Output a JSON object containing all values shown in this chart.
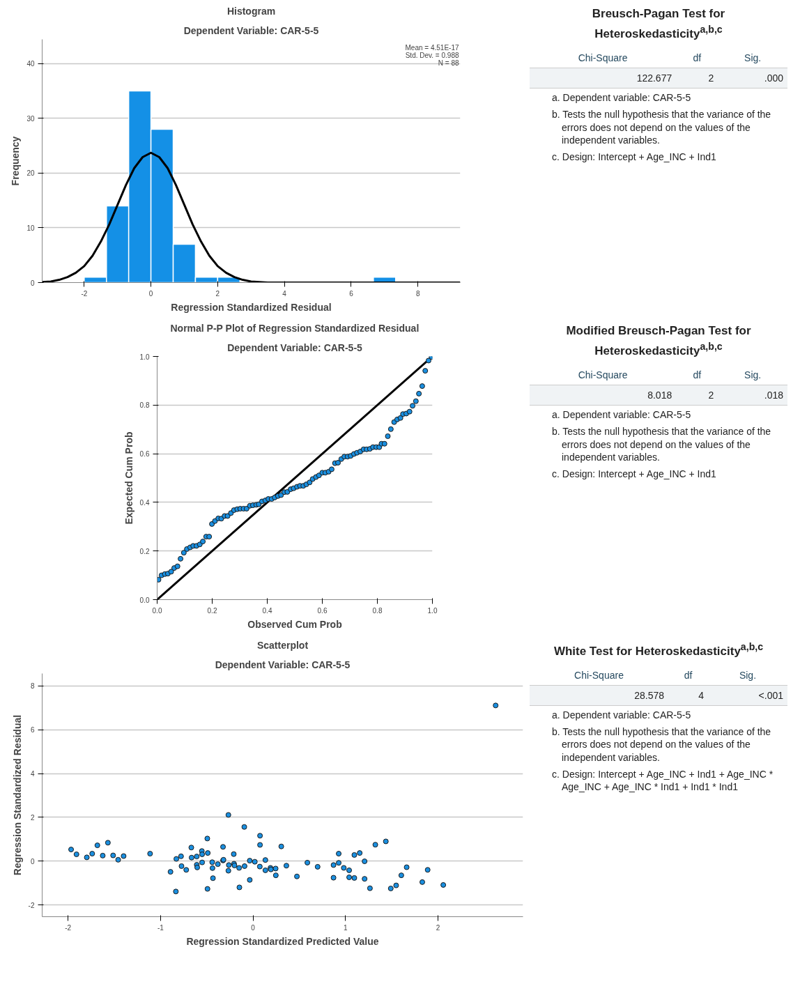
{
  "chart_data": [
    {
      "type": "histogram",
      "title": "Histogram",
      "subtitle": "Dependent Variable: CAR-5-5",
      "xlabel": "Regression Standardized Residual",
      "ylabel": "Frequency",
      "bins": [
        -2,
        -1.333,
        -0.667,
        0,
        0.667,
        1.333,
        2,
        2.667,
        3.333,
        4,
        4.667,
        5.333,
        6,
        6.667,
        7.333
      ],
      "values": [
        1,
        14,
        35,
        28,
        7,
        1,
        1,
        0,
        0,
        0,
        0,
        0,
        0,
        1
      ],
      "color": "#1490e6",
      "series": [
        {
          "type": "line",
          "color": "#000000",
          "x": [
            -3.26,
            -3,
            -2.75,
            -2.5,
            -2.25,
            -2,
            -1.75,
            -1.5,
            -1.25,
            -1,
            -0.75,
            -0.5,
            -0.25,
            0,
            0.25,
            0.5,
            0.75,
            1,
            1.25,
            1.5,
            1.75,
            2,
            2.25,
            2.5,
            2.75,
            3,
            3.5,
            4,
            6,
            9.27
          ],
          "values": [
            0.1,
            0.2,
            0.5,
            1,
            1.8,
            3,
            4.9,
            7.5,
            10.6,
            14.2,
            17.8,
            20.9,
            22.9,
            23.7,
            22.9,
            20.9,
            17.8,
            14.2,
            10.6,
            7.5,
            4.9,
            3,
            1.8,
            1,
            0.5,
            0.2,
            0,
            0,
            0,
            0
          ]
        }
      ],
      "annotations": [
        "Mean = 4.51E-17",
        "Std. Dev. = 0.988",
        "N = 88"
      ],
      "xlim": [
        -3.26,
        9.27
      ],
      "ylim": [
        0,
        44.4
      ],
      "xticks": [
        -2,
        0,
        2,
        4,
        6,
        8
      ],
      "yticks": [
        0,
        10,
        20,
        30,
        40
      ],
      "grid": "y"
    },
    {
      "type": "other",
      "title": "Breusch-Pagan Test for Heteroskedasticity$^{a,b,c}$",
      "annotations": [
        "Chi-Square",
        "df",
        "Sig.",
        "122.677",
        "2",
        ".000",
        "a. Dependent variable: CAR-5-5",
        "b. Tests the null hypothesis that the variance of the errors does not depend on the values of the independent variables.",
        "c. Design: Intercept + Age_INC + Ind1"
      ]
    },
    {
      "type": "scatter",
      "title": "Normal P-P Plot of Regression Standardized Residual",
      "subtitle": "Dependent Variable: CAR-5-5",
      "xlabel": "Observed Cum Prob",
      "ylabel": "Expected Cum Prob",
      "marker": "circle",
      "series": [
        {
          "type": "line",
          "color": "#000000",
          "marker": "none",
          "x": [
            0,
            1
          ],
          "values": [
            0,
            1
          ]
        },
        {
          "type": "scatter",
          "color": "#1a8fe0",
          "x": [
            0.005,
            0.016,
            0.028,
            0.039,
            0.051,
            0.062,
            0.074,
            0.085,
            0.097,
            0.108,
            0.12,
            0.131,
            0.143,
            0.155,
            0.166,
            0.178,
            0.189,
            0.199,
            0.21,
            0.222,
            0.233,
            0.245,
            0.256,
            0.268,
            0.279,
            0.291,
            0.302,
            0.314,
            0.325,
            0.337,
            0.348,
            0.36,
            0.369,
            0.381,
            0.393,
            0.404,
            0.416,
            0.427,
            0.439,
            0.45,
            0.462,
            0.473,
            0.485,
            0.496,
            0.508,
            0.519,
            0.531,
            0.542,
            0.554,
            0.565,
            0.577,
            0.588,
            0.6,
            0.611,
            0.623,
            0.634,
            0.646,
            0.657,
            0.669,
            0.68,
            0.692,
            0.703,
            0.715,
            0.726,
            0.738,
            0.75,
            0.761,
            0.773,
            0.784,
            0.796,
            0.807,
            0.815,
            0.826,
            0.838,
            0.849,
            0.861,
            0.872,
            0.884,
            0.893,
            0.905,
            0.917,
            0.928,
            0.94,
            0.951,
            0.963,
            0.974,
            0.986,
            0.997
          ],
          "values": [
            0.082,
            0.1,
            0.105,
            0.107,
            0.115,
            0.13,
            0.137,
            0.168,
            0.193,
            0.208,
            0.215,
            0.221,
            0.221,
            0.227,
            0.239,
            0.259,
            0.259,
            0.311,
            0.323,
            0.334,
            0.333,
            0.344,
            0.344,
            0.356,
            0.368,
            0.372,
            0.374,
            0.374,
            0.374,
            0.386,
            0.388,
            0.39,
            0.392,
            0.404,
            0.408,
            0.414,
            0.414,
            0.42,
            0.426,
            0.43,
            0.442,
            0.443,
            0.454,
            0.458,
            0.464,
            0.468,
            0.468,
            0.474,
            0.482,
            0.496,
            0.504,
            0.511,
            0.522,
            0.522,
            0.526,
            0.536,
            0.561,
            0.563,
            0.578,
            0.588,
            0.588,
            0.591,
            0.599,
            0.604,
            0.609,
            0.618,
            0.618,
            0.62,
            0.627,
            0.627,
            0.627,
            0.641,
            0.641,
            0.672,
            0.701,
            0.73,
            0.741,
            0.747,
            0.763,
            0.765,
            0.773,
            0.797,
            0.816,
            0.847,
            0.878,
            0.941,
            0.983,
            0.998
          ]
        }
      ],
      "xlim": [
        0,
        1
      ],
      "ylim": [
        0,
        1
      ],
      "xticks": [
        {
          "value": 0,
          "label": "0.0"
        },
        0.2,
        0.4,
        0.6,
        0.8,
        {
          "value": 1,
          "label": "1.0"
        }
      ],
      "yticks": [
        {
          "value": 0,
          "label": "0.0"
        },
        0.2,
        0.4,
        0.6,
        0.8,
        {
          "value": 1,
          "label": "1.0"
        }
      ],
      "grid": "y"
    },
    {
      "type": "other",
      "title": "Modified Breusch-Pagan Test for Heteroskedasticity$^{a,b,c}$",
      "annotations": [
        "Chi-Square",
        "df",
        "Sig.",
        "8.018",
        "2",
        ".018",
        "a. Dependent variable: CAR-5-5",
        "b. Tests the null hypothesis that the variance of the errors does not depend on the values of the independent variables.",
        "c. Design: Intercept + Age_INC + Ind1"
      ]
    },
    {
      "type": "scatter",
      "title": "Scatterplot",
      "subtitle": "Dependent Variable: CAR-5-5",
      "xlabel": "Regression Standardized Predicted Value",
      "ylabel": "Regression Standardized Residual",
      "marker": "circle",
      "series": [
        {
          "type": "scatter",
          "color": "#1a8fe0",
          "x": [
            -1.967,
            -1.909,
            -1.797,
            -1.739,
            -1.683,
            -1.625,
            -1.569,
            -1.513,
            -1.458,
            -1.399,
            -1.113,
            -0.892,
            -0.834,
            -0.829,
            -0.778,
            -0.773,
            -0.722,
            -0.667,
            -0.664,
            -0.608,
            -0.608,
            -0.603,
            -0.553,
            -0.55,
            -0.55,
            -0.494,
            -0.489,
            -0.492,
            -0.441,
            -0.438,
            -0.433,
            -0.38,
            -0.324,
            -0.324,
            -0.319,
            -0.266,
            -0.266,
            -0.261,
            -0.208,
            -0.205,
            -0.2,
            -0.15,
            -0.147,
            -0.094,
            -0.091,
            -0.035,
            -0.035,
            0.02,
            0.076,
            0.076,
            0.074,
            0.134,
            0.134,
            0.189,
            0.194,
            0.245,
            0.247,
            0.306,
            0.361,
            0.475,
            0.588,
            0.699,
            0.871,
            0.871,
            0.927,
            0.927,
            0.982,
            1.04,
            1.04,
            1.096,
            1.096,
            1.154,
            1.207,
            1.207,
            1.265,
            1.323,
            1.437,
            1.49,
            1.548,
            1.604,
            1.662,
            1.831,
            1.889,
            2.058,
            2.624
          ],
          "values": [
            0.53,
            0.31,
            0.17,
            0.34,
            0.72,
            0.25,
            0.84,
            0.26,
            0.06,
            0.23,
            0.34,
            -0.49,
            -1.39,
            0.1,
            0.22,
            -0.23,
            -0.4,
            0.62,
            0.16,
            0.21,
            -0.17,
            -0.29,
            0.46,
            0.31,
            -0.06,
            1.03,
            0.37,
            -1.27,
            -0.05,
            -0.32,
            -0.78,
            -0.14,
            0.65,
            0.03,
            0.06,
            2.11,
            -0.44,
            -0.18,
            0.32,
            -0.12,
            -0.2,
            -0.31,
            -1.2,
            1.56,
            -0.23,
            0.02,
            -0.86,
            -0.03,
            1.16,
            0.74,
            -0.25,
            0.05,
            -0.42,
            -0.31,
            -0.38,
            -0.34,
            -0.65,
            0.67,
            -0.21,
            -0.7,
            -0.07,
            -0.26,
            -0.18,
            -0.76,
            0.34,
            -0.08,
            -0.31,
            -0.42,
            -0.74,
            0.28,
            -0.77,
            0.37,
            -0.01,
            -0.81,
            -1.24,
            0.75,
            0.9,
            -1.25,
            -1.11,
            -0.65,
            -0.28,
            -0.96,
            -0.4,
            -1.09,
            7.11
          ]
        }
      ],
      "xlim": [
        -2.28,
        2.92
      ],
      "ylim": [
        -2.54,
        8.57
      ],
      "xticks": [
        -2,
        -1,
        0,
        1,
        2
      ],
      "yticks": [
        -2,
        0,
        2,
        4,
        6,
        8
      ],
      "grid": "y"
    },
    {
      "type": "other",
      "title": "White Test for Heteroskedasticity$^{a,b,c}$",
      "annotations": [
        "Chi-Square",
        "df",
        "Sig.",
        "28.578",
        "4",
        "<.001",
        "a. Dependent variable: CAR-5-5",
        "b. Tests the null hypothesis that the variance of the errors does not depend on the values of the independent variables.",
        "c. Design: Intercept + Age_INC + Ind1 + Age_INC * Age_INC + Age_INC * Ind1 + Ind1 * Ind1"
      ]
    }
  ]
}
